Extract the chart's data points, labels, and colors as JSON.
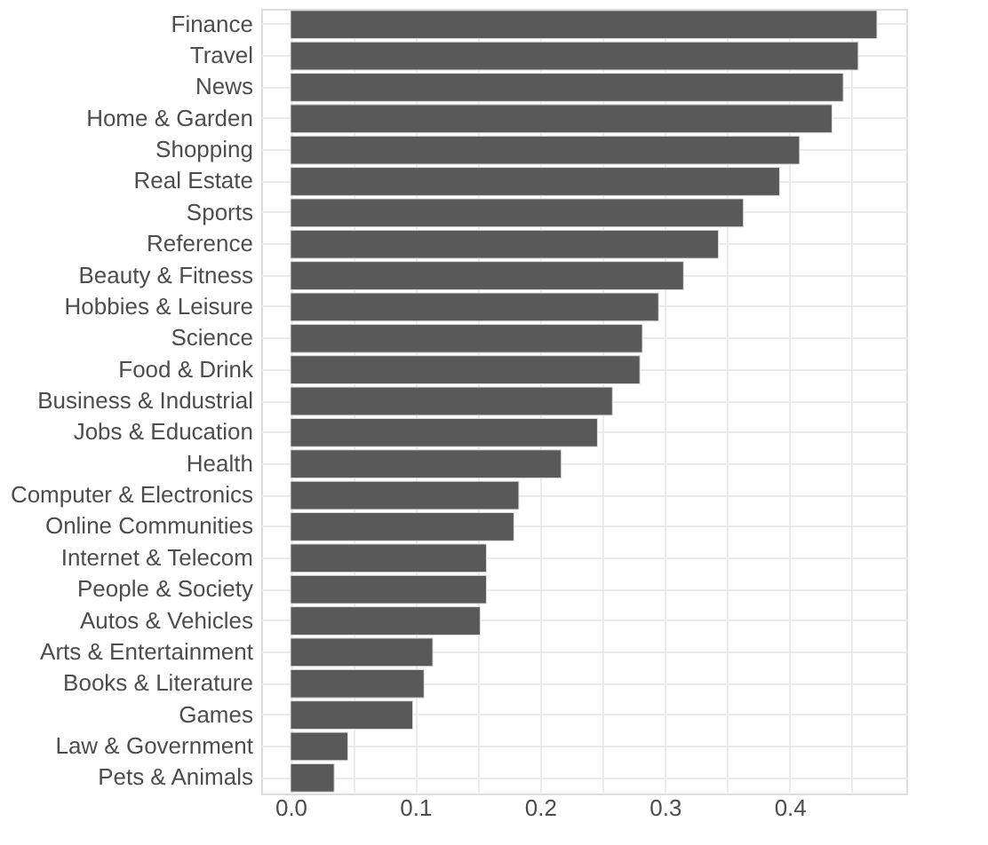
{
  "chart_data": {
    "type": "bar",
    "orientation": "horizontal",
    "categories": [
      "Finance",
      "Travel",
      "News",
      "Home & Garden",
      "Shopping",
      "Real Estate",
      "Sports",
      "Reference",
      "Beauty & Fitness",
      "Hobbies & Leisure",
      "Science",
      "Food & Drink",
      "Business & Industrial",
      "Jobs & Education",
      "Health",
      "Computer & Electronics",
      "Online Communities",
      "Internet & Telecom",
      "People & Society",
      "Autos & Vehicles",
      "Arts & Entertainment",
      "Books & Literature",
      "Games",
      "Law & Government",
      "Pets & Animals"
    ],
    "values": [
      0.47,
      0.455,
      0.443,
      0.434,
      0.408,
      0.392,
      0.363,
      0.343,
      0.315,
      0.295,
      0.282,
      0.28,
      0.258,
      0.246,
      0.217,
      0.183,
      0.179,
      0.157,
      0.157,
      0.152,
      0.114,
      0.107,
      0.098,
      0.046,
      0.035
    ],
    "color": "#595959",
    "xlim": [
      -0.0235,
      0.4935
    ],
    "xticks": [
      {
        "value": 0,
        "label": "0.0"
      },
      {
        "value": 0.05,
        "label": null
      },
      {
        "value": 0.1,
        "label": "0.1"
      },
      {
        "value": 0.15,
        "label": null
      },
      {
        "value": 0.2,
        "label": "0.2"
      },
      {
        "value": 0.25,
        "label": null
      },
      {
        "value": 0.3,
        "label": "0.3"
      },
      {
        "value": 0.35,
        "label": null
      },
      {
        "value": 0.4,
        "label": "0.4"
      },
      {
        "value": 0.45,
        "label": null
      }
    ],
    "grid": true
  }
}
